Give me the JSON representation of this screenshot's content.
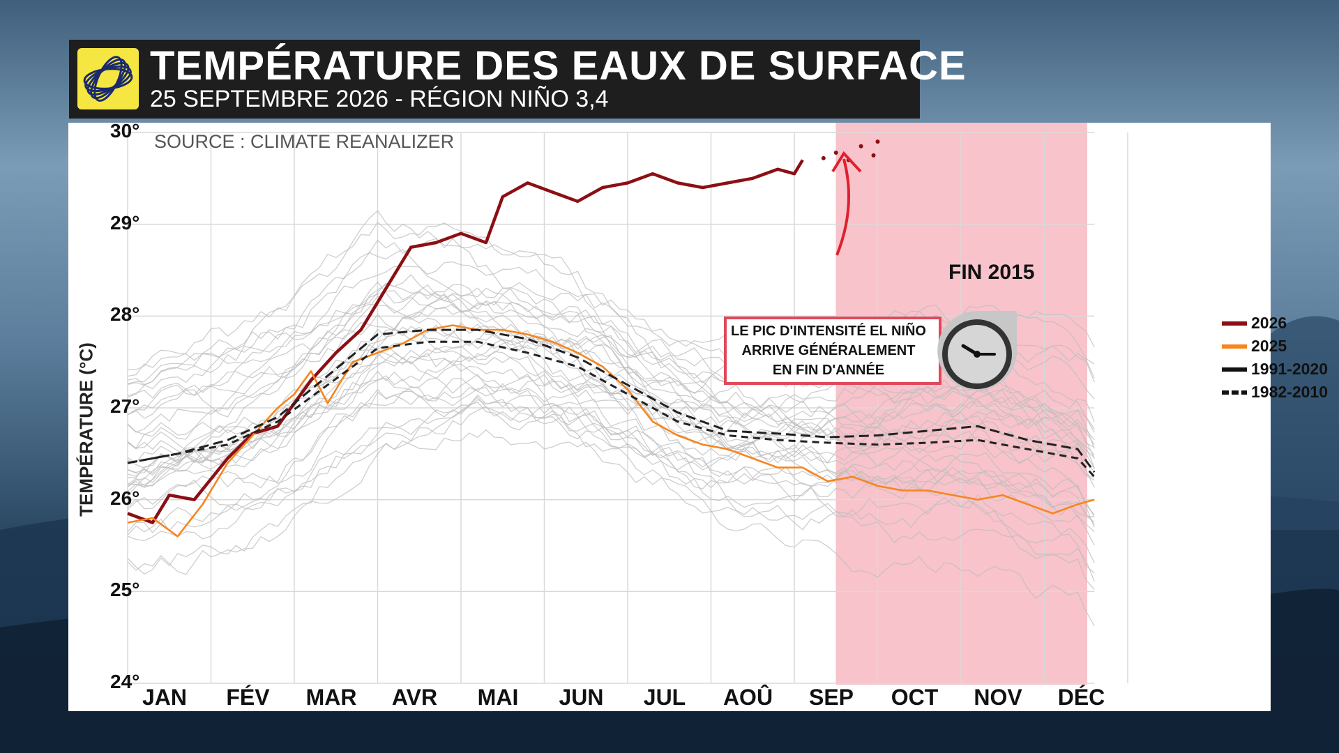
{
  "header": {
    "title": "TEMPÉRATURE DES EAUX DE SURFACE",
    "subtitle": "25 SEPTEMBRE 2026 - RÉGION NIÑO 3,4"
  },
  "source_label": "SOURCE : CLIMATE REANALIZER",
  "annotation": {
    "lines": [
      "LE PIC D'INTENSITÉ EL NIÑO",
      "ARRIVE GÉNÉRALEMENT",
      "EN FIN D'ANNÉE"
    ],
    "highlight_label": "FIN 2015",
    "highlight_period": [
      "OCT",
      "DÉC"
    ],
    "icon": "clock-icon"
  },
  "colors": {
    "s2026": "#8b0f14",
    "s2025": "#f5861f",
    "clim": "#222222",
    "history": "#bdbdbd",
    "highlight": "#f7b9c2",
    "annotation_border": "#e0485a",
    "arrow": "#e0202e"
  },
  "chart_data": {
    "type": "line",
    "title": "TEMPÉRATURE DES EAUX DE SURFACE",
    "ylabel": "TEMPÉRATURE (°C)",
    "xlabel": "",
    "ylim": [
      24,
      30
    ],
    "yticks": [
      "24°",
      "25°",
      "26°",
      "27°",
      "28°",
      "29°",
      "30°"
    ],
    "categories": [
      "JAN",
      "FÉV",
      "MAR",
      "AVR",
      "MAI",
      "JUN",
      "JUL",
      "AOÛ",
      "SEP",
      "OCT",
      "NOV",
      "DÉC"
    ],
    "grid": true,
    "legend_position": "right",
    "series": [
      {
        "name": "2026",
        "x": [
          0,
          0.3,
          0.5,
          0.8,
          1.2,
          1.5,
          1.8,
          2.2,
          2.5,
          2.8,
          3.1,
          3.4,
          3.7,
          4.0,
          4.3,
          4.5,
          4.8,
          5.1,
          5.4,
          5.7,
          6.0,
          6.3,
          6.6,
          6.9,
          7.2,
          7.5,
          7.8,
          8.0,
          8.1
        ],
        "values": [
          25.85,
          25.75,
          26.05,
          26.0,
          26.45,
          26.72,
          26.8,
          27.3,
          27.6,
          27.85,
          28.3,
          28.75,
          28.8,
          28.9,
          28.8,
          29.3,
          29.45,
          29.35,
          29.25,
          29.4,
          29.45,
          29.55,
          29.45,
          29.4,
          29.45,
          29.5,
          29.6,
          29.55,
          29.7
        ]
      },
      {
        "name": "2025",
        "x": [
          0,
          0.3,
          0.6,
          0.9,
          1.2,
          1.5,
          1.8,
          2.0,
          2.2,
          2.4,
          2.7,
          3.0,
          3.3,
          3.6,
          3.9,
          4.2,
          4.5,
          4.8,
          5.1,
          5.4,
          5.7,
          6.0,
          6.3,
          6.6,
          6.9,
          7.2,
          7.5,
          7.8,
          8.1,
          8.4,
          8.7,
          9.0,
          9.3,
          9.6,
          9.9,
          10.2,
          10.5,
          10.8,
          11.1,
          11.4,
          11.6
        ],
        "values": [
          25.75,
          25.8,
          25.6,
          25.95,
          26.4,
          26.7,
          27.0,
          27.15,
          27.4,
          27.05,
          27.5,
          27.6,
          27.7,
          27.85,
          27.9,
          27.85,
          27.85,
          27.8,
          27.72,
          27.6,
          27.45,
          27.2,
          26.85,
          26.7,
          26.6,
          26.55,
          26.45,
          26.35,
          26.35,
          26.2,
          26.25,
          26.15,
          26.1,
          26.1,
          26.05,
          26.0,
          26.05,
          25.95,
          25.85,
          25.95,
          26.0
        ]
      },
      {
        "name": "1991-2020",
        "x": [
          0,
          0.6,
          1.2,
          1.8,
          2.4,
          3.0,
          3.6,
          4.2,
          4.8,
          5.4,
          6.0,
          6.6,
          7.2,
          7.8,
          8.4,
          9.0,
          9.6,
          10.2,
          10.8,
          11.4,
          11.6
        ],
        "values": [
          26.4,
          26.5,
          26.65,
          26.9,
          27.35,
          27.8,
          27.85,
          27.85,
          27.75,
          27.55,
          27.25,
          26.95,
          26.75,
          26.72,
          26.68,
          26.7,
          26.75,
          26.8,
          26.65,
          26.55,
          26.3
        ]
      },
      {
        "name": "1982-2010",
        "x": [
          0,
          0.6,
          1.2,
          1.8,
          2.4,
          3.0,
          3.6,
          4.2,
          4.8,
          5.4,
          6.0,
          6.6,
          7.2,
          7.8,
          8.4,
          9.0,
          9.6,
          10.2,
          10.8,
          11.4,
          11.6
        ],
        "values": [
          26.4,
          26.5,
          26.6,
          26.85,
          27.25,
          27.65,
          27.72,
          27.72,
          27.6,
          27.45,
          27.15,
          26.85,
          26.7,
          26.65,
          26.62,
          26.6,
          26.62,
          26.65,
          26.55,
          26.45,
          26.25
        ]
      }
    ]
  },
  "legend": [
    {
      "label": "2026",
      "color": "#8b0f14",
      "style": "solid"
    },
    {
      "label": "2025",
      "color": "#f5861f",
      "style": "solid"
    },
    {
      "label": "1991-2020",
      "color": "#111111",
      "style": "solid"
    },
    {
      "label": "1982-2010",
      "color": "#111111",
      "style": "dashed"
    }
  ]
}
